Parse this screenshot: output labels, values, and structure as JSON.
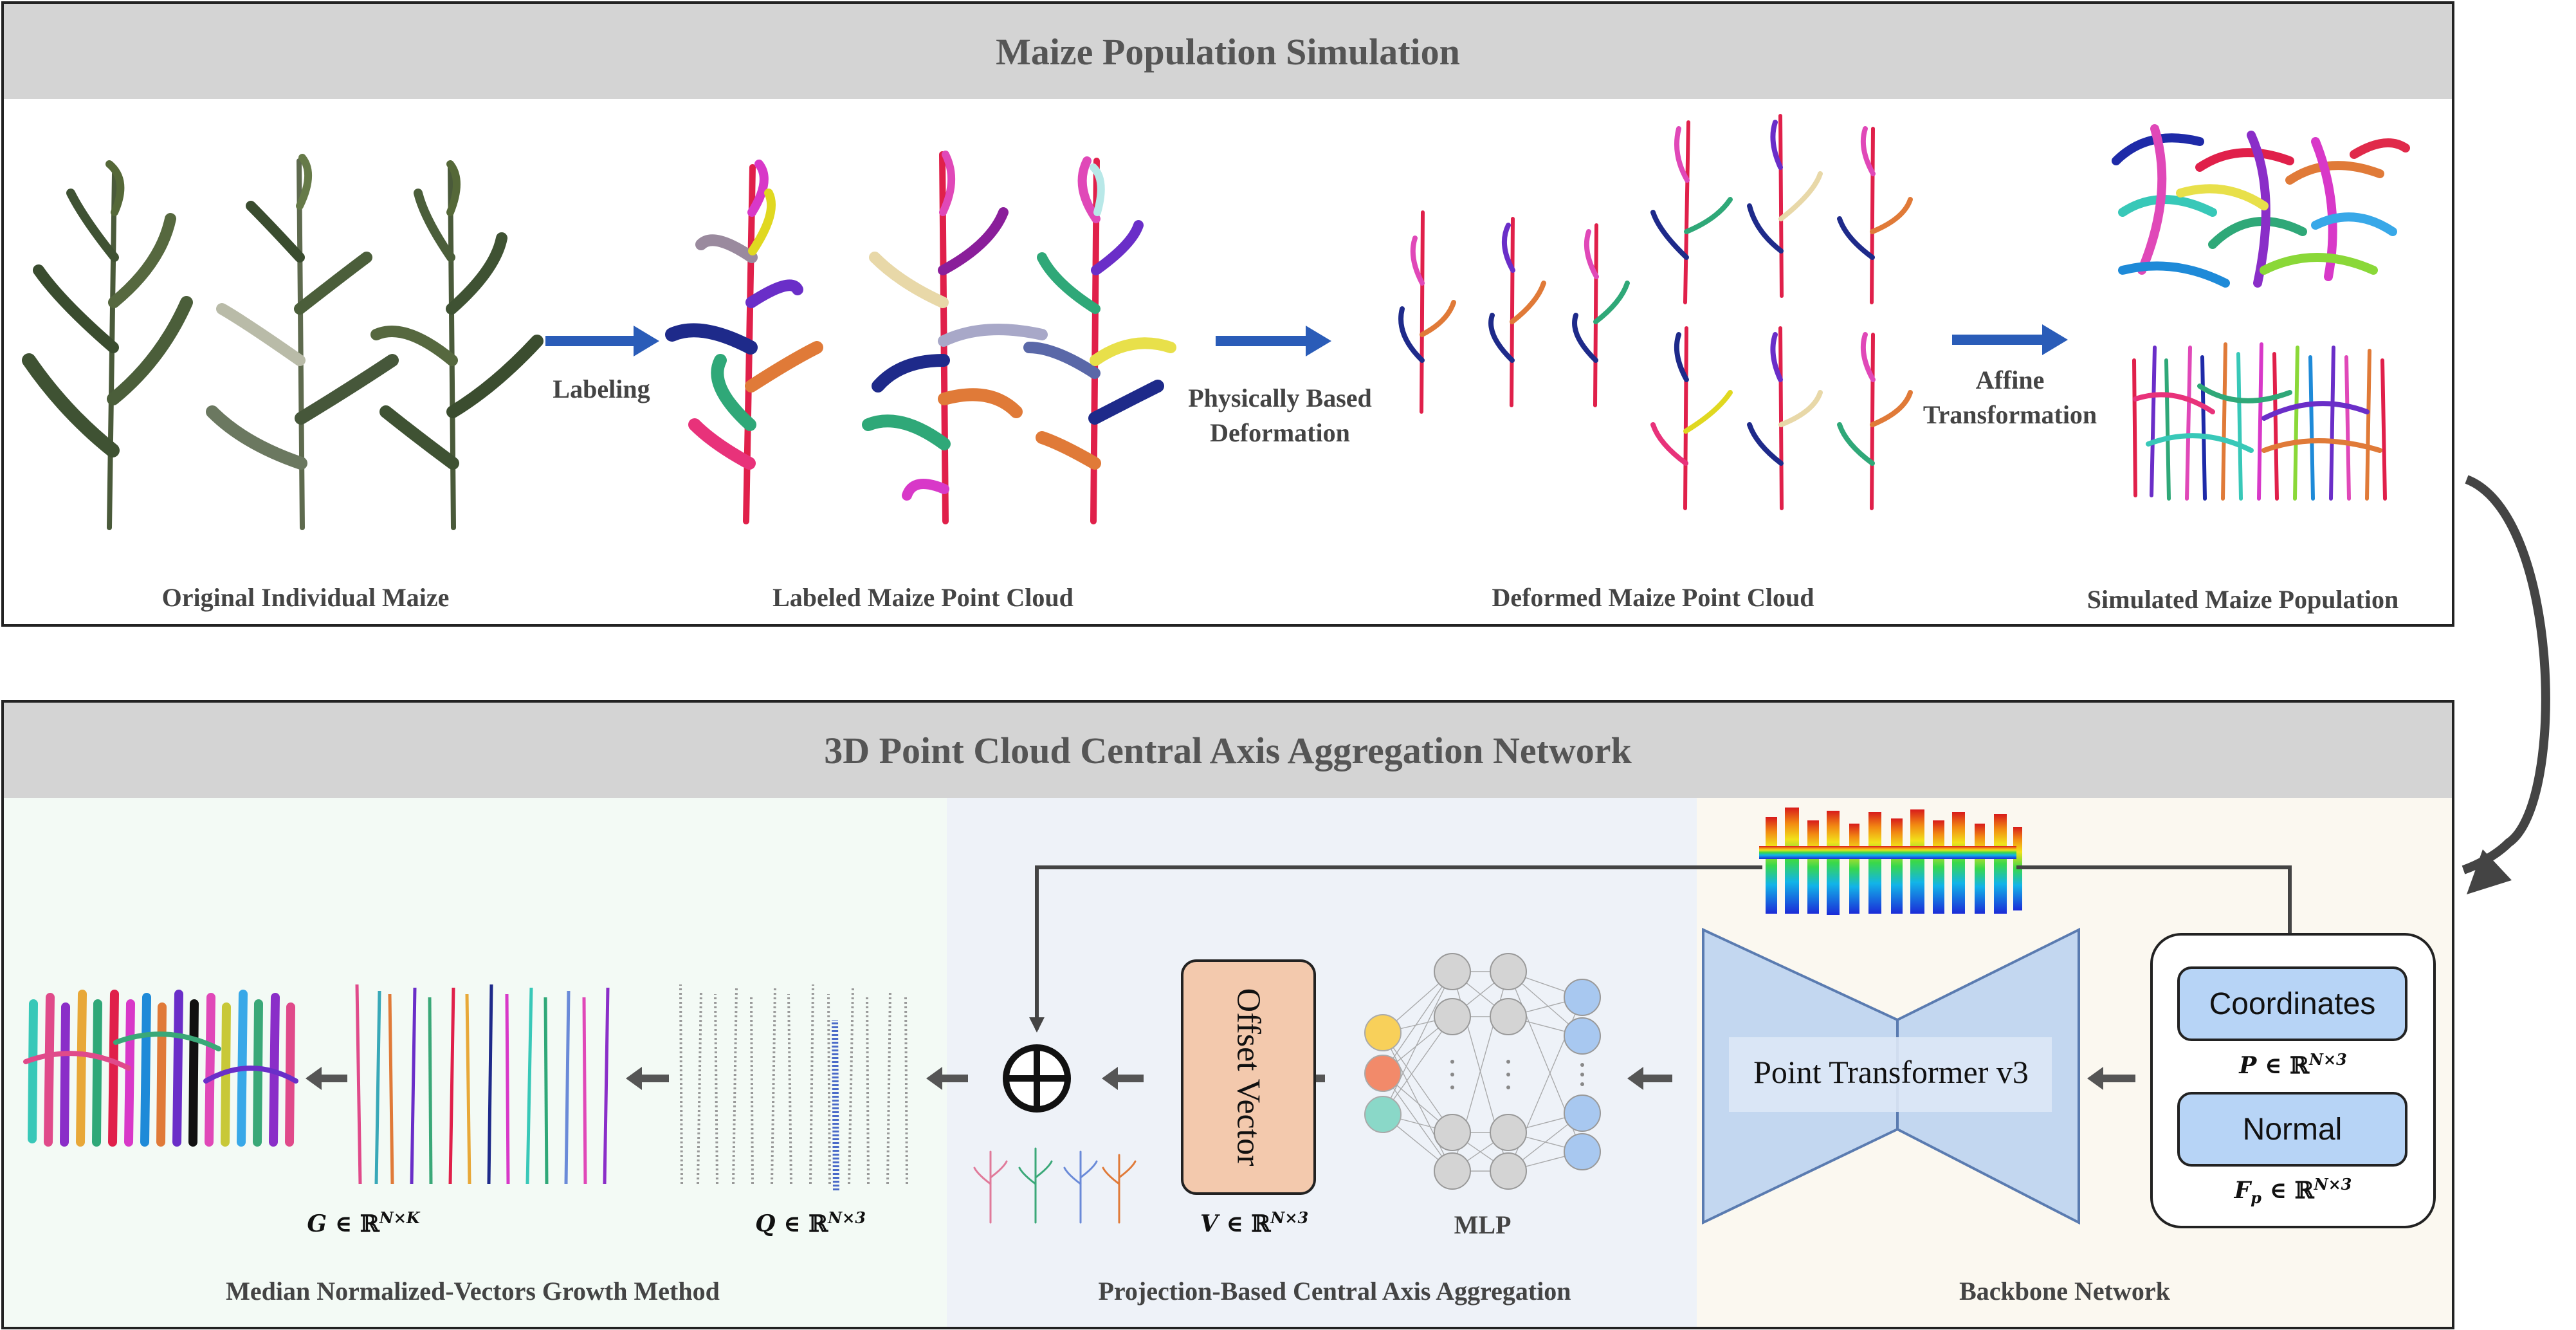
{
  "top": {
    "title": "Maize Population Simulation",
    "captions": {
      "original": "Original Individual Maize",
      "labeled": "Labeled Maize Point Cloud",
      "deformed": "Deformed Maize Point Cloud",
      "population": "Simulated Maize Population"
    },
    "arrows": {
      "labeling": "Labeling",
      "deformation_1": "Physically Based",
      "deformation_2": "Deformation",
      "affine_1": "Affine",
      "affine_2": "Transformation"
    }
  },
  "bottom": {
    "title": "3D Point Cloud Central Axis Aggregation Network",
    "sections": {
      "median": "Median Normalized-Vectors Growth Method",
      "projection": "Projection-Based Central Axis Aggregation",
      "backbone": "Backbone Network"
    },
    "boxes": {
      "coordinates": "Coordinates",
      "normal": "Normal",
      "transformer": "Point Transformer v3",
      "offset": "Offset Vector",
      "mlp": "MLP"
    },
    "math": {
      "P_sym": "P",
      "F_sym": "F",
      "F_sub": "p",
      "V_sym": "V",
      "Q_sym": "Q",
      "G_sym": "G",
      "in": "∈",
      "real": "ℝ",
      "Nx3": "N×3",
      "NxK": "N×K"
    },
    "colors": {
      "green_bg": "#f3faf5",
      "blue_bg": "#eef2f8",
      "beige_bg": "#fbf8f0",
      "offset_fill": "#f3c9ad",
      "box_blue": "#b7d4f6"
    }
  }
}
